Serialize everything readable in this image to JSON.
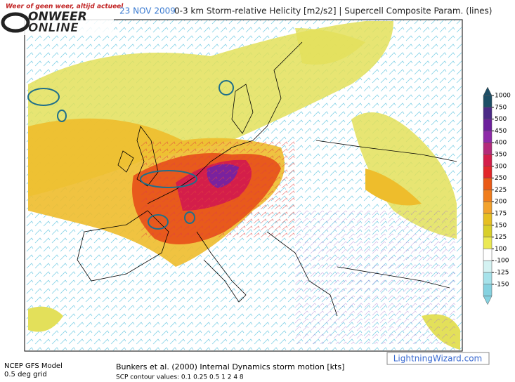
{
  "logo": {
    "tagline": "Weer of geen weer, altijd actueel",
    "line1": "ONWEER",
    "line2": "ONLINE"
  },
  "header": {
    "date": "23 NOV 2009",
    "title": "0-3 km Storm-relative Helicity [m2/s2] | Supercell Composite Param. (lines)"
  },
  "colorbar": {
    "levels": [
      1000,
      750,
      500,
      450,
      400,
      350,
      300,
      250,
      225,
      200,
      175,
      150,
      125,
      100,
      -100,
      -125,
      -150
    ],
    "colors": [
      "#1d4e66",
      "#4b2a86",
      "#6c1f9c",
      "#8e2aa8",
      "#b42a7a",
      "#d41e4a",
      "#e2262a",
      "#ea5a16",
      "#f07d1c",
      "#f2a22c",
      "#e6bf22",
      "#d8cf2a",
      "#ebe954",
      "#ffffff",
      "#d4f2f2",
      "#a6e2ea",
      "#86d2e0"
    ]
  },
  "footer": {
    "model": "NCEP GFS Model",
    "grid": "0.5 deg grid",
    "motion": "Bunkers et al. (2000) Internal Dynamics storm motion [kts]",
    "scp": "SCP contour values: 0.1 0.25 0.5 1 2 4 8",
    "site": "LightningWizard.com"
  }
}
